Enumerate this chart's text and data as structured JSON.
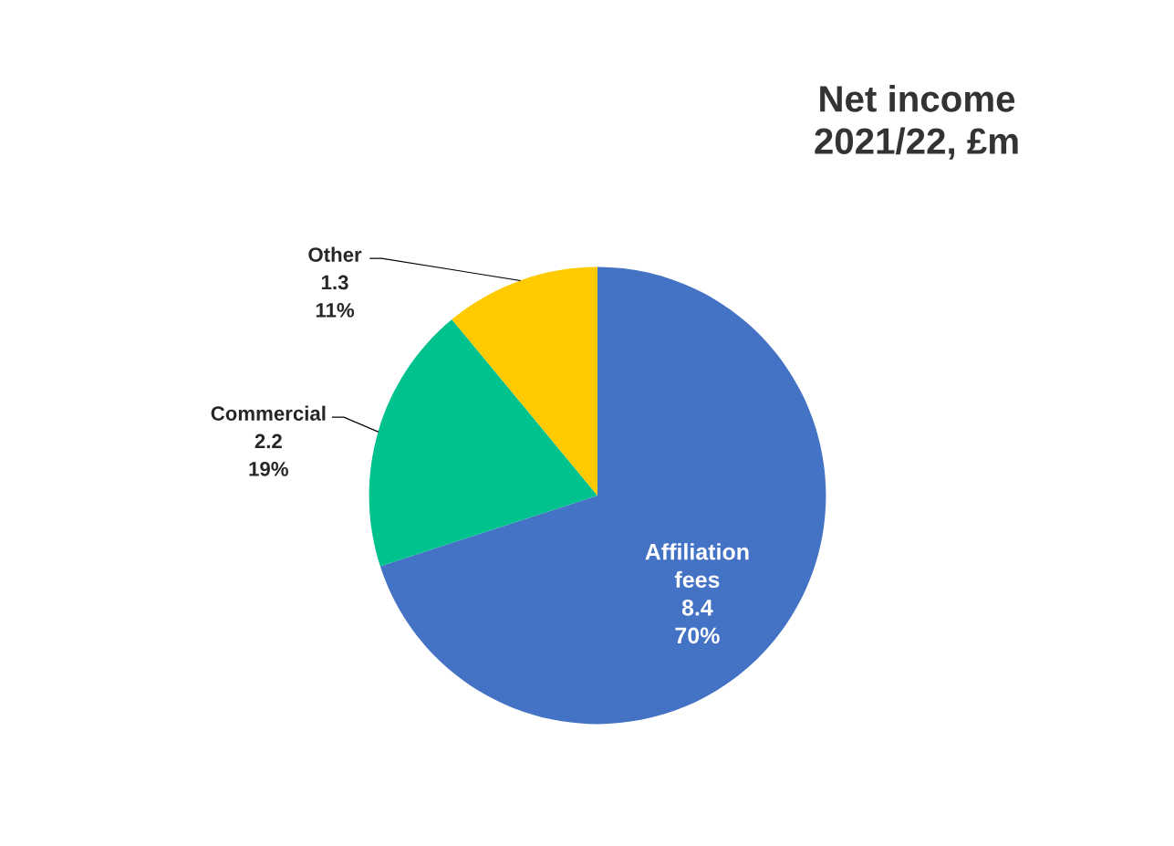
{
  "chart_data": {
    "type": "pie",
    "title": "Net income\n2021/22, £m",
    "categories": [
      "Affiliation fees",
      "Commercial",
      "Other"
    ],
    "values": [
      70,
      19,
      11
    ],
    "colors": [
      "#4472c4",
      "#00c28f",
      "#ffca00"
    ],
    "value_labels": [
      "8.4\n70%",
      "2.2\n19%",
      "1.3\n11%"
    ]
  }
}
